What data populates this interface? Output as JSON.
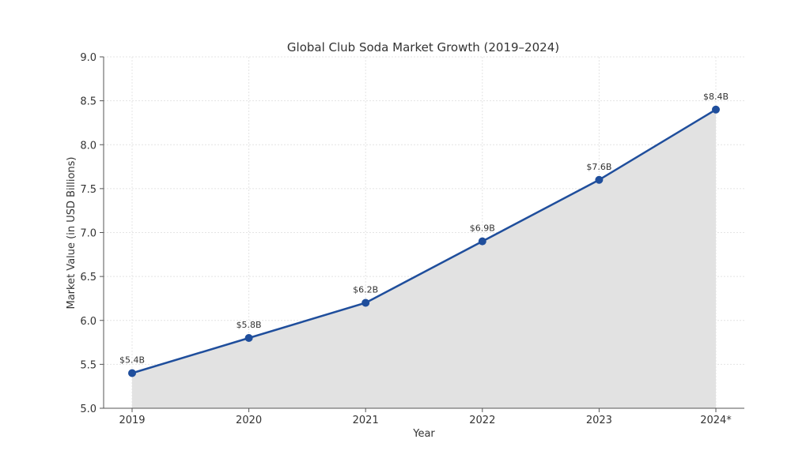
{
  "chart_data": {
    "type": "line",
    "title": "Global Club Soda Market Growth (2019–2024)",
    "xlabel": "Year",
    "ylabel": "Market Value (in USD Billions)",
    "categories": [
      "2019",
      "2020",
      "2021",
      "2022",
      "2023",
      "2024*"
    ],
    "values": [
      5.4,
      5.8,
      6.2,
      6.9,
      7.6,
      8.4
    ],
    "data_labels": [
      "$5.4B",
      "$5.8B",
      "$6.2B",
      "$6.9B",
      "$7.6B",
      "$8.4B"
    ],
    "ylim": [
      5.0,
      9.0
    ],
    "yticks": [
      "5.0",
      "5.5",
      "6.0",
      "6.5",
      "7.0",
      "7.5",
      "8.0",
      "8.5",
      "9.0"
    ],
    "ytick_values": [
      5.0,
      5.5,
      6.0,
      6.5,
      7.0,
      7.5,
      8.0,
      8.5,
      9.0
    ],
    "grid": true,
    "area_fill": true,
    "line_color": "#1f4e9c",
    "fill_color": "#e2e2e2"
  }
}
